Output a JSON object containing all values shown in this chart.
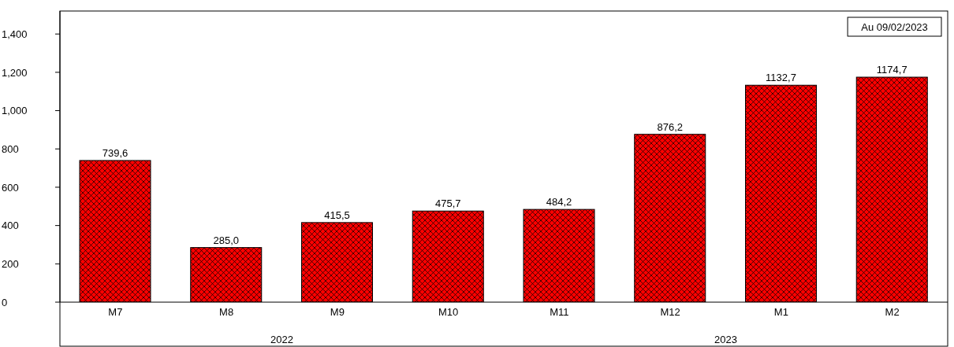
{
  "chart_data": {
    "type": "bar",
    "categories": [
      "M7",
      "M8",
      "M9",
      "M10",
      "M11",
      "M12",
      "M1",
      "M2"
    ],
    "values": [
      739.6,
      285.0,
      415.5,
      475.7,
      484.2,
      876.2,
      1132.7,
      1174.7
    ],
    "value_labels": [
      "739,6",
      "285,0",
      "415,5",
      "475,7",
      "484,2",
      "876,2",
      "1132,7",
      "1174,7"
    ],
    "color": "#ff0000",
    "ylim": [
      0,
      1520
    ],
    "yticks": [
      0,
      200,
      400,
      600,
      800,
      {
        "value": 1000,
        "label": "1,000"
      },
      {
        "value": 1200,
        "label": "1,200"
      },
      {
        "value": 1400,
        "label": "1,400"
      }
    ],
    "annotations": [
      "Au 09/02/2023",
      "2022",
      "2023"
    ],
    "grid": false,
    "legend": false
  }
}
